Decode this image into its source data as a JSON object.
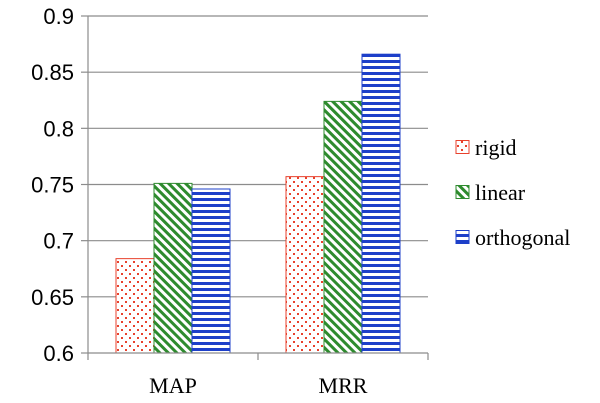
{
  "chart_data": {
    "type": "bar",
    "categories": [
      "MAP",
      "MRR"
    ],
    "series": [
      {
        "name": "rigid",
        "values": [
          0.684,
          0.757
        ]
      },
      {
        "name": "linear",
        "values": [
          0.751,
          0.824
        ]
      },
      {
        "name": "orthogonal",
        "values": [
          0.746,
          0.866
        ]
      }
    ],
    "ylim": [
      0.6,
      0.9
    ],
    "yticks": [
      "0.6",
      "0.65",
      "0.7",
      "0.75",
      "0.8",
      "0.85",
      "0.9"
    ],
    "grid": "horizontal",
    "legend_position": "right",
    "title": "",
    "xlabel": "",
    "ylabel": ""
  },
  "colors": {
    "rigid": "#e8412c",
    "linear": "#2e8b2e",
    "orthogonal": "#1d3fc9",
    "grid": "#8c8c8c",
    "axis": "#8c8c8c"
  },
  "patterns": {
    "rigid": "dots",
    "linear": "diagonal-stripes",
    "orthogonal": "horizontal-stripes"
  }
}
